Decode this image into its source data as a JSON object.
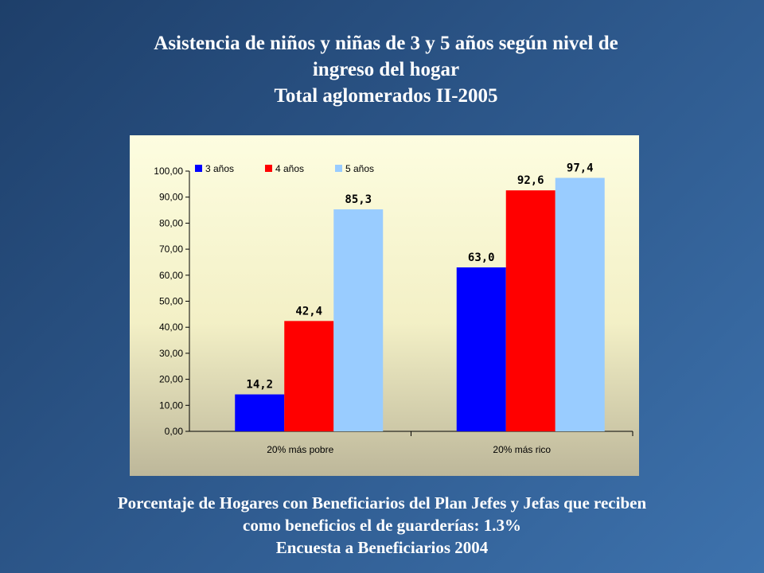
{
  "slide": {
    "title_lines": [
      "Asistencia de niños y niñas de 3 y 5 años según nivel de",
      "ingreso del hogar",
      "Total aglomerados II-2005"
    ],
    "footer_lines": [
      "Porcentaje de Hogares con Beneficiarios del Plan Jefes y Jefas que reciben",
      "como beneficios el de guarderías: 1.3%",
      "Encuesta a Beneficiarios 2004"
    ]
  },
  "chart_data": {
    "type": "bar",
    "categories": [
      "20% más pobre",
      "20% más rico"
    ],
    "series": [
      {
        "name": "3 años",
        "values": [
          14.2,
          63.0
        ],
        "labels": [
          "14,2",
          "63,0"
        ],
        "color": "#0000ff"
      },
      {
        "name": "4 años",
        "values": [
          42.4,
          92.6
        ],
        "labels": [
          "42,4",
          "92,6"
        ],
        "color": "#ff0000"
      },
      {
        "name": "5 años",
        "values": [
          85.3,
          97.4
        ],
        "labels": [
          "85,3",
          "97,4"
        ],
        "color": "#99ccff"
      }
    ],
    "ylim": [
      0,
      100
    ],
    "yticks": [
      "0,00",
      "10,00",
      "20,00",
      "30,00",
      "40,00",
      "50,00",
      "60,00",
      "70,00",
      "80,00",
      "90,00",
      "100,00"
    ],
    "legend_position": "top-left",
    "grid": false
  }
}
